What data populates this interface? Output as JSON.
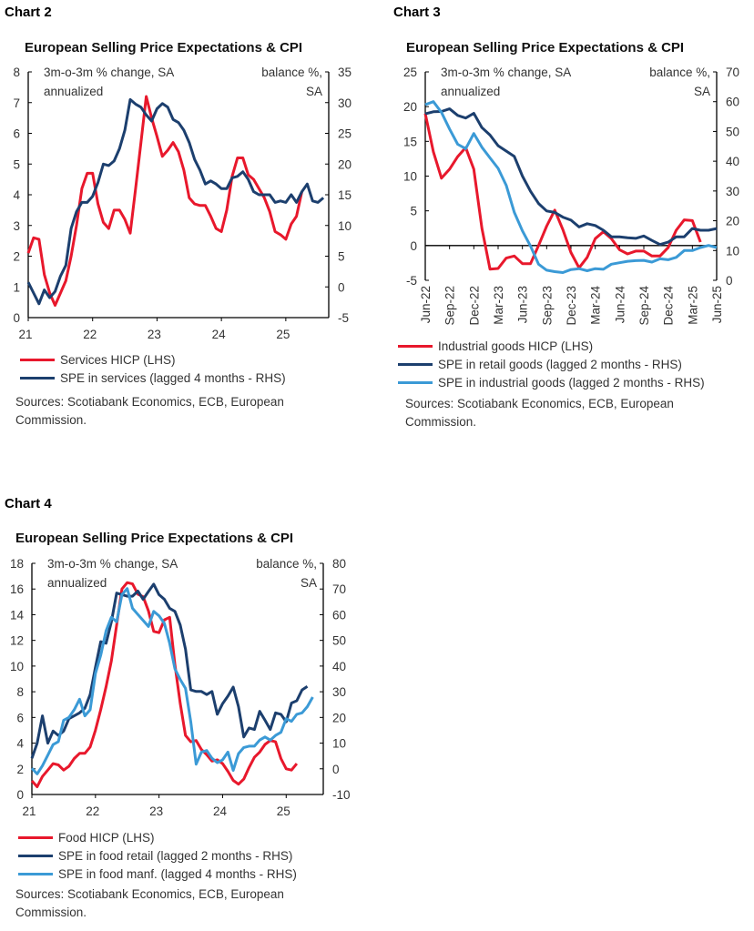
{
  "colors": {
    "red": "#e8182c",
    "dark_blue": "#1c3f6e",
    "light_blue": "#3b9ad6",
    "axis": "#000000"
  },
  "chart_data": [
    {
      "heading": "Chart 2",
      "type": "line",
      "title": "European Selling Price Expectations & CPI",
      "left_label": [
        "3m-o-3m % change, SA",
        "annualized"
      ],
      "right_label": [
        "balance %,",
        "SA"
      ],
      "ylim_left": [
        0,
        8
      ],
      "yticks_left": [
        0,
        1,
        2,
        3,
        4,
        5,
        6,
        7,
        8
      ],
      "ylim_right": [
        -5,
        35
      ],
      "yticks_right": [
        -5,
        0,
        5,
        10,
        15,
        20,
        25,
        30,
        35
      ],
      "xlim": [
        "2021-01",
        "2025-09"
      ],
      "xticks": [
        {
          "date": "2021-01",
          "label": "21"
        },
        {
          "date": "2022-01",
          "label": "22"
        },
        {
          "date": "2023-01",
          "label": "23"
        },
        {
          "date": "2024-01",
          "label": "24"
        },
        {
          "date": "2025-01",
          "label": "25"
        }
      ],
      "grid": false,
      "x": [
        "2021-01",
        "2021-02",
        "2021-03",
        "2021-04",
        "2021-05",
        "2021-06",
        "2021-07",
        "2021-08",
        "2021-09",
        "2021-10",
        "2021-11",
        "2021-12",
        "2022-01",
        "2022-02",
        "2022-03",
        "2022-04",
        "2022-05",
        "2022-06",
        "2022-07",
        "2022-08",
        "2022-09",
        "2022-10",
        "2022-11",
        "2022-12",
        "2023-01",
        "2023-02",
        "2023-03",
        "2023-04",
        "2023-05",
        "2023-06",
        "2023-07",
        "2023-08",
        "2023-09",
        "2023-10",
        "2023-11",
        "2023-12",
        "2024-01",
        "2024-02",
        "2024-03",
        "2024-04",
        "2024-05",
        "2024-06",
        "2024-07",
        "2024-08",
        "2024-09",
        "2024-10",
        "2024-11",
        "2024-12",
        "2025-01",
        "2025-02",
        "2025-03",
        "2025-04",
        "2025-05",
        "2025-06",
        "2025-07",
        "2025-08"
      ],
      "series": [
        {
          "name": "Services HICP (LHS)",
          "axis": "left",
          "color": "red",
          "values": [
            2.1,
            2.6,
            2.55,
            1.4,
            0.8,
            0.4,
            0.8,
            1.2,
            2.0,
            3.0,
            4.2,
            4.7,
            4.7,
            3.7,
            3.1,
            2.9,
            3.5,
            3.5,
            3.2,
            2.75,
            4.2,
            5.7,
            7.2,
            6.5,
            5.9,
            5.25,
            5.45,
            5.7,
            5.4,
            4.8,
            3.9,
            3.7,
            3.65,
            3.65,
            3.3,
            2.9,
            2.8,
            3.5,
            4.6,
            5.2,
            5.2,
            4.65,
            4.5,
            4.2,
            3.9,
            3.45,
            2.8,
            2.7,
            2.55,
            3.05,
            3.3,
            4.1,
            null,
            null,
            null,
            null
          ]
        },
        {
          "name": "SPE in services (lagged 4 months - RHS)",
          "axis": "right",
          "color": "dark_blue",
          "values": [
            0.75,
            -1,
            -2.75,
            -0.5,
            -1.75,
            -0.75,
            1.75,
            3.5,
            9.5,
            12.25,
            13.75,
            13.75,
            14.75,
            17,
            20,
            19.75,
            20.5,
            22.5,
            25.5,
            30.5,
            29.75,
            29.25,
            28,
            27,
            29,
            29.85,
            29.25,
            27.25,
            26.75,
            25.5,
            23.5,
            20.75,
            19,
            16.75,
            17.25,
            16.75,
            16,
            16,
            17.75,
            18,
            18.75,
            17.5,
            15.5,
            15,
            15,
            15,
            13.75,
            14,
            13.75,
            15,
            13.75,
            15.5,
            16.75,
            14,
            13.75,
            14.5
          ]
        }
      ],
      "sources": [
        "Sources: Scotiabank Economics, ECB, European",
        "Commission."
      ]
    },
    {
      "heading": "Chart 3",
      "type": "line",
      "title": "European Selling Price Expectations & CPI",
      "left_label": [
        "3m-o-3m % change, SA",
        "annualized"
      ],
      "right_label": [
        "balance %,",
        "SA"
      ],
      "ylim_left": [
        -5,
        25
      ],
      "yticks_left": [
        -5,
        0,
        5,
        10,
        15,
        20,
        25
      ],
      "ylim_right": [
        0,
        70
      ],
      "yticks_right": [
        0,
        10,
        20,
        30,
        40,
        50,
        60,
        70
      ],
      "xlim": [
        "2022-06",
        "2025-06"
      ],
      "xticks": [
        {
          "date": "2022-06",
          "label": "Jun-22"
        },
        {
          "date": "2022-09",
          "label": "Sep-22"
        },
        {
          "date": "2022-12",
          "label": "Dec-22"
        },
        {
          "date": "2023-03",
          "label": "Mar-23"
        },
        {
          "date": "2023-06",
          "label": "Jun-23"
        },
        {
          "date": "2023-09",
          "label": "Sep-23"
        },
        {
          "date": "2023-12",
          "label": "Dec-23"
        },
        {
          "date": "2024-03",
          "label": "Mar-24"
        },
        {
          "date": "2024-06",
          "label": "Jun-24"
        },
        {
          "date": "2024-09",
          "label": "Sep-24"
        },
        {
          "date": "2024-12",
          "label": "Dec-24"
        },
        {
          "date": "2025-03",
          "label": "Mar-25"
        },
        {
          "date": "2025-06",
          "label": "Jun-25"
        }
      ],
      "grid": false,
      "x": [
        "2022-06",
        "2022-07",
        "2022-08",
        "2022-09",
        "2022-10",
        "2022-11",
        "2022-12",
        "2023-01",
        "2023-02",
        "2023-03",
        "2023-04",
        "2023-05",
        "2023-06",
        "2023-07",
        "2023-08",
        "2023-09",
        "2023-10",
        "2023-11",
        "2023-12",
        "2024-01",
        "2024-02",
        "2024-03",
        "2024-04",
        "2024-05",
        "2024-06",
        "2024-07",
        "2024-08",
        "2024-09",
        "2024-10",
        "2024-11",
        "2024-12",
        "2025-01",
        "2025-02",
        "2025-03",
        "2025-04",
        "2025-05",
        "2025-06"
      ],
      "series": [
        {
          "name": "Industrial goods HICP (LHS)",
          "axis": "left",
          "color": "red",
          "values": [
            19,
            13.5,
            9.7,
            11,
            12.8,
            14.1,
            11,
            2.5,
            -3.4,
            -3.3,
            -1.8,
            -1.5,
            -2.6,
            -2.6,
            0,
            2.8,
            5.1,
            2.3,
            -1,
            -3.2,
            -1.7,
            1.0,
            2.0,
            1.0,
            -0.6,
            -1.2,
            -0.8,
            -0.8,
            -1.5,
            -1.5,
            -0.3,
            2.2,
            3.7,
            3.6,
            0.5,
            null,
            null
          ]
        },
        {
          "name": "SPE in retail goods (lagged 2 months - RHS)",
          "axis": "right",
          "color": "dark_blue",
          "values": [
            55.9,
            56.6,
            56.7,
            57.6,
            55.4,
            54.5,
            56.1,
            51.3,
            48.8,
            45.2,
            43.4,
            41.6,
            35,
            29.9,
            25.8,
            23.3,
            22.8,
            21.2,
            20.2,
            17.9,
            19,
            18.4,
            16.8,
            14.6,
            14.6,
            14.3,
            14.1,
            14.9,
            13.4,
            12,
            12.8,
            14.6,
            14.6,
            17.4,
            16.8,
            16.8,
            17.4
          ]
        },
        {
          "name": "SPE in industrial goods (lagged 2 months - RHS)",
          "axis": "right",
          "color": "light_blue",
          "values": [
            59,
            60,
            56.4,
            50.8,
            45.7,
            44.2,
            49.3,
            44.7,
            41.1,
            37.6,
            31.9,
            22.8,
            16.6,
            11.5,
            5.4,
            3.4,
            2.9,
            2.6,
            3.6,
            3.9,
            3.2,
            3.9,
            3.7,
            5.4,
            5.9,
            6.4,
            6.6,
            6.7,
            6.1,
            7.2,
            6.9,
            7.7,
            10,
            10,
            11,
            11.7,
            11
          ]
        }
      ],
      "sources": [
        "Sources: Scotiabank Economics, ECB, European",
        "Commission."
      ]
    },
    {
      "heading": "Chart 4",
      "type": "line",
      "title": "European Selling Price Expectations & CPI",
      "left_label": [
        "3m-o-3m % change, SA",
        "annualized"
      ],
      "right_label": [
        "balance %,",
        "SA"
      ],
      "ylim_left": [
        0,
        18
      ],
      "yticks_left": [
        0,
        2,
        4,
        6,
        8,
        10,
        12,
        14,
        16,
        18
      ],
      "ylim_right": [
        -10,
        80
      ],
      "yticks_right": [
        -10,
        0,
        10,
        20,
        30,
        40,
        50,
        60,
        70,
        80
      ],
      "xlim": [
        "2021-01",
        "2025-08"
      ],
      "xticks": [
        {
          "date": "2021-01",
          "label": "21"
        },
        {
          "date": "2022-01",
          "label": "22"
        },
        {
          "date": "2023-01",
          "label": "23"
        },
        {
          "date": "2024-01",
          "label": "24"
        },
        {
          "date": "2025-01",
          "label": "25"
        }
      ],
      "grid": false,
      "x": [
        "2021-01",
        "2021-02",
        "2021-03",
        "2021-04",
        "2021-05",
        "2021-06",
        "2021-07",
        "2021-08",
        "2021-09",
        "2021-10",
        "2021-11",
        "2021-12",
        "2022-01",
        "2022-02",
        "2022-03",
        "2022-04",
        "2022-05",
        "2022-06",
        "2022-07",
        "2022-08",
        "2022-09",
        "2022-10",
        "2022-11",
        "2022-12",
        "2023-01",
        "2023-02",
        "2023-03",
        "2023-04",
        "2023-05",
        "2023-06",
        "2023-07",
        "2023-08",
        "2023-09",
        "2023-10",
        "2023-11",
        "2023-12",
        "2024-01",
        "2024-02",
        "2024-03",
        "2024-04",
        "2024-05",
        "2024-06",
        "2024-07",
        "2024-08",
        "2024-09",
        "2024-10",
        "2024-11",
        "2024-12",
        "2025-01",
        "2025-02",
        "2025-03",
        "2025-04",
        "2025-05",
        "2025-06"
      ],
      "series": [
        {
          "name": "Food HICP (LHS)",
          "axis": "left",
          "color": "red",
          "values": [
            1.06,
            0.6,
            1.4,
            1.9,
            2.4,
            2.3,
            1.9,
            2.2,
            2.8,
            3.2,
            3.2,
            3.7,
            5.0,
            6.6,
            8.4,
            10.4,
            13.2,
            16.0,
            16.5,
            16.4,
            15.6,
            15.4,
            14.3,
            12.7,
            12.6,
            13.6,
            13.8,
            10.1,
            7.1,
            4.6,
            4.1,
            4.2,
            3.5,
            3.1,
            2.6,
            2.7,
            2.4,
            1.8,
            1.1,
            0.8,
            1.2,
            2.1,
            2.9,
            3.3,
            3.9,
            4.2,
            4.1,
            2.8,
            2.0,
            1.9,
            2.4,
            null,
            null,
            null
          ]
        },
        {
          "name": "SPE in food retail (lagged 2 months - RHS)",
          "axis": "right",
          "color": "dark_blue",
          "values": [
            4.1,
            10,
            20.6,
            10,
            14.7,
            13,
            14.7,
            19.5,
            20.6,
            21.8,
            23.6,
            28.9,
            39.5,
            49.5,
            48.9,
            57.2,
            68.4,
            67.8,
            67.2,
            67.2,
            69.2,
            66,
            69,
            71.9,
            67.8,
            66,
            62.5,
            61.3,
            56,
            46.6,
            30.7,
            30.1,
            30.1,
            28.9,
            30.1,
            21.2,
            25.4,
            28.3,
            31.8,
            24.2,
            12.4,
            15.9,
            15.3,
            22.4,
            18.9,
            15.3,
            21.8,
            21.2,
            18.3,
            25.6,
            26.5,
            30.7,
            32.1,
            null
          ]
        },
        {
          "name": "SPE in food manf. (lagged 4 months - RHS)",
          "axis": "right",
          "color": "light_blue",
          "values": [
            0.2,
            -2,
            1.2,
            5.3,
            9.4,
            10.6,
            18.9,
            20,
            23,
            27.1,
            20.6,
            23,
            37.1,
            44.2,
            53.7,
            59,
            57.2,
            67.8,
            70.2,
            62.5,
            60.1,
            57.8,
            55.4,
            61.3,
            59.6,
            56.6,
            48.9,
            38.9,
            34.8,
            31.3,
            18.3,
            1.8,
            6.5,
            7.1,
            4.1,
            2.4,
            3.5,
            6.5,
            -0.6,
            5.9,
            8.3,
            8.8,
            8.8,
            11.2,
            12.4,
            11.2,
            13,
            14.2,
            19.5,
            18.5,
            21.2,
            21.8,
            24.2,
            27.9
          ]
        }
      ],
      "sources": [
        "Sources: Scotiabank Economics, ECB, European",
        "Commission."
      ]
    }
  ]
}
